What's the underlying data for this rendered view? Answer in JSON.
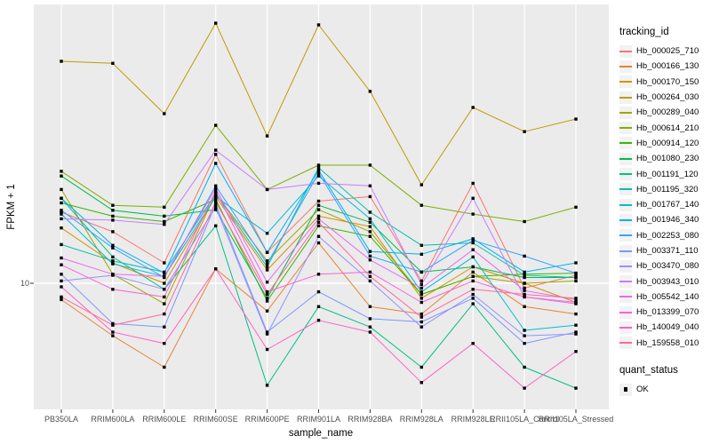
{
  "axes": {
    "y_title": "FPKM + 1",
    "x_title": "sample_name",
    "y_tick_labels": [
      "10"
    ]
  },
  "legend": {
    "tracking_title": "tracking_id",
    "quant_title": "quant_status",
    "quant_items": [
      {
        "label": "OK",
        "marker": "black-filled-square"
      }
    ]
  },
  "colors": {
    "panel_bg": "#EBEBEB",
    "grid": "#FFFFFF",
    "tick_text": "#4D4D4D",
    "point": "#000000",
    "legend_key_bg": "#F2F2F2"
  },
  "chart_data": {
    "type": "line",
    "title": "",
    "xlabel": "sample_name",
    "ylabel": "FPKM + 1",
    "y_scale": "log10",
    "y_ticks": [
      10
    ],
    "ylim_approx": [
      3.5,
      95
    ],
    "grid": "white major gridlines on gray panel",
    "legend_position": "right",
    "point_marker": "filled-black-square",
    "quant_status": "OK",
    "categories": [
      "PB350LA",
      "RRIM600LA",
      "RRIM600LE",
      "RRIM600SE",
      "RRIM600PE",
      "RRIM901LA",
      "RRIM928BA",
      "RRIM928LA",
      "RRIM928LE",
      "RRII105LA_Control",
      "RRII105LA_Stressed"
    ],
    "series": [
      {
        "name": "Hb_000025_710",
        "color": "#F8766D",
        "values": [
          18.3,
          15.5,
          11.9,
          29.9,
          13.0,
          20.1,
          20.9,
          10.2,
          23.4,
          9.6,
          10.7
        ]
      },
      {
        "name": "Hb_000166_130",
        "color": "#EA8331",
        "values": [
          8.7,
          6.4,
          4.9,
          11.3,
          7.9,
          14.1,
          8.2,
          7.7,
          11.0,
          8.2,
          7.7
        ]
      },
      {
        "name": "Hb_000170_150",
        "color": "#D89000",
        "values": [
          16.0,
          11.9,
          10.0,
          20.9,
          11.2,
          17.7,
          16.2,
          8.8,
          11.5,
          10.0,
          8.5
        ]
      },
      {
        "name": "Hb_000264_030",
        "color": "#C09B00",
        "values": [
          66.0,
          64.9,
          42.3,
          91.3,
          35.0,
          90.0,
          51.1,
          23.1,
          44.6,
          36.3,
          40.4
        ]
      },
      {
        "name": "Hb_000289_040",
        "color": "#A3A500",
        "values": [
          22.2,
          10.8,
          8.4,
          21.4,
          12.1,
          18.7,
          15.5,
          9.1,
          10.6,
          10.0,
          10.2
        ]
      },
      {
        "name": "Hb_000614_210",
        "color": "#7CAE00",
        "values": [
          25.9,
          19.4,
          19.1,
          38.3,
          22.2,
          27.3,
          27.3,
          19.4,
          18.0,
          16.9,
          19.1
        ]
      },
      {
        "name": "Hb_000914_120",
        "color": "#39B600",
        "values": [
          19.8,
          17.7,
          16.9,
          20.4,
          8.6,
          16.3,
          14.9,
          9.1,
          10.6,
          10.8,
          10.9
        ]
      },
      {
        "name": "Hb_001080_230",
        "color": "#00BB4E",
        "values": [
          24.9,
          18.6,
          17.7,
          18.7,
          8.8,
          19.4,
          16.8,
          11.0,
          11.5,
          10.5,
          10.5
        ]
      },
      {
        "name": "Hb_001191_120",
        "color": "#00C087",
        "values": [
          20.6,
          12.5,
          9.5,
          16.3,
          4.2,
          8.2,
          6.9,
          4.9,
          8.4,
          4.9,
          4.1
        ]
      },
      {
        "name": "Hb_001195_320",
        "color": "#00C0B2",
        "values": [
          13.9,
          12.1,
          11.0,
          21.4,
          11.5,
          26.7,
          18.3,
          13.8,
          14.1,
          10.7,
          10.5
        ]
      },
      {
        "name": "Hb_001767_140",
        "color": "#00BCD8",
        "values": [
          18.0,
          11.8,
          10.6,
          20.9,
          15.3,
          24.9,
          17.3,
          9.3,
          12.5,
          6.7,
          7.0
        ]
      },
      {
        "name": "Hb_001946_340",
        "color": "#00B0F6",
        "values": [
          20.6,
          13.8,
          10.9,
          27.7,
          13.0,
          26.1,
          13.1,
          12.8,
          14.6,
          11.0,
          11.9
        ]
      },
      {
        "name": "Hb_002253_080",
        "color": "#35A2FF",
        "values": [
          18.6,
          13.5,
          10.5,
          22.9,
          11.8,
          25.5,
          12.6,
          11.0,
          14.4,
          12.6,
          10.9
        ]
      },
      {
        "name": "Hb_003371_110",
        "color": "#7C96FF",
        "values": [
          10.8,
          7.1,
          6.9,
          19.6,
          6.6,
          9.3,
          7.4,
          7.2,
          8.8,
          6.0,
          6.6
        ]
      },
      {
        "name": "Hb_003470_080",
        "color": "#9590FF",
        "values": [
          10.2,
          10.7,
          9.5,
          19.1,
          6.5,
          14.9,
          10.2,
          6.9,
          9.1,
          6.4,
          6.5
        ]
      },
      {
        "name": "Hb_003943_010",
        "color": "#C77CFF",
        "values": [
          17.3,
          17.1,
          16.5,
          31.0,
          22.2,
          23.4,
          22.9,
          9.9,
          20.6,
          8.9,
          8.5
        ]
      },
      {
        "name": "Hb_005542_140",
        "color": "#E76BF3",
        "values": [
          12.4,
          10.8,
          10.6,
          22.4,
          10.1,
          17.3,
          12.2,
          9.6,
          13.3,
          9.4,
          8.7
        ]
      },
      {
        "name": "Hb_013399_070",
        "color": "#FA62DB",
        "values": [
          11.7,
          9.5,
          8.9,
          21.9,
          9.3,
          10.8,
          11.0,
          8.5,
          10.2,
          8.9,
          8.4
        ]
      },
      {
        "name": "Hb_140049_040",
        "color": "#FF61C3",
        "values": [
          9.7,
          6.6,
          6.0,
          11.3,
          5.7,
          7.3,
          6.6,
          4.3,
          6.0,
          4.1,
          5.6
        ]
      },
      {
        "name": "Hb_159558_010",
        "color": "#FF6A98",
        "values": [
          8.9,
          7.0,
          7.7,
          20.0,
          9.1,
          16.8,
          10.6,
          7.5,
          9.5,
          9.1,
          8.8
        ]
      }
    ]
  }
}
